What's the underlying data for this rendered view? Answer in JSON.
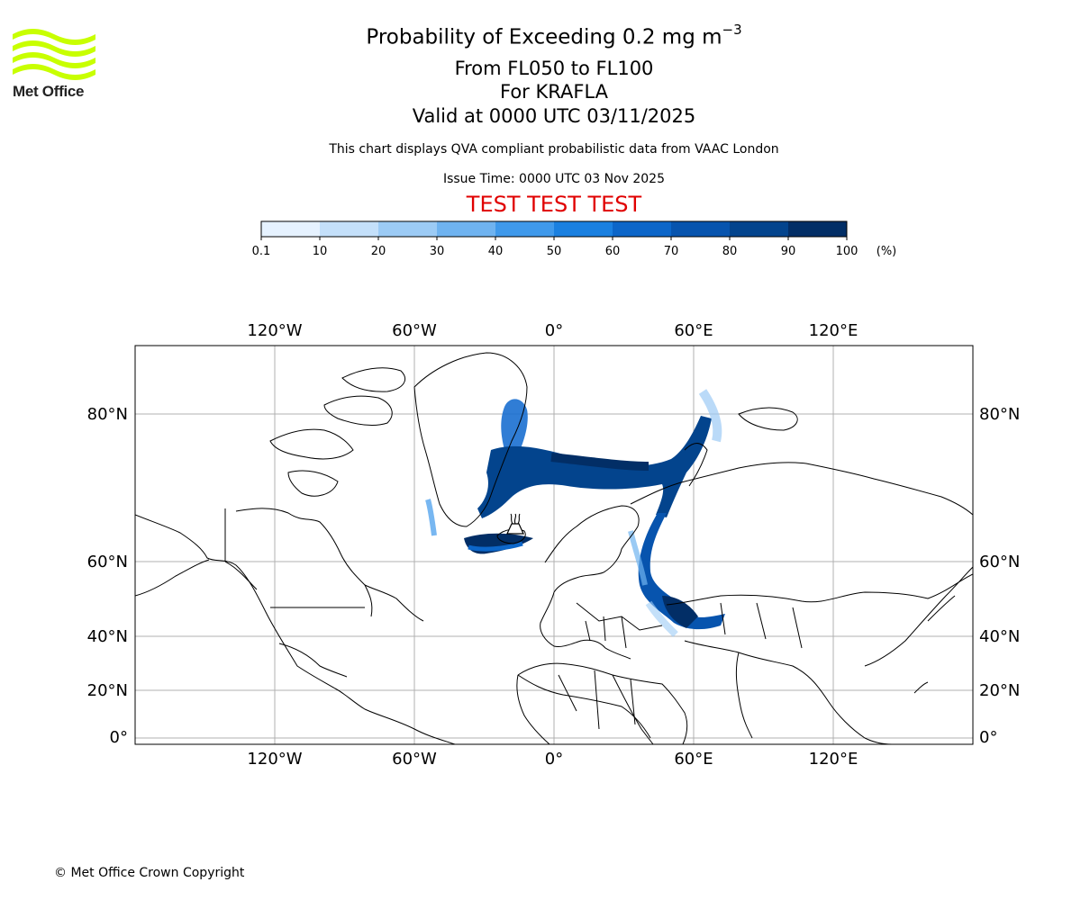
{
  "logo": {
    "brand": "Met Office",
    "accent": "#c8ff00"
  },
  "header": {
    "title_main": "Probability of Exceeding 0.2 mg m",
    "title_exponent": "−3",
    "flight_levels": "From FL050 to FL100",
    "volcano": "For KRAFLA",
    "valid_time": "Valid at 0000 UTC 03/11/2025",
    "qva_note": "This chart displays QVA compliant probabilistic data from VAAC London",
    "issue_time": "Issue Time: 0000 UTC 03 Nov 2025",
    "test_banner": "TEST TEST TEST",
    "test_color": "#e00000"
  },
  "colorbar": {
    "ticks": [
      "0.1",
      "10",
      "20",
      "30",
      "40",
      "50",
      "60",
      "70",
      "80",
      "90",
      "100"
    ],
    "unit": "(%)",
    "colors": [
      "#e6f2ff",
      "#c4e0fa",
      "#9ccbf5",
      "#6fb3f0",
      "#3f99eb",
      "#1a80e0",
      "#0c66c9",
      "#0754ae",
      "#03448d",
      "#022e66"
    ]
  },
  "map": {
    "longitude_labels": [
      "120°W",
      "60°W",
      "0°",
      "60°E",
      "120°E"
    ],
    "latitude_labels": [
      "80°N",
      "60°N",
      "40°N",
      "20°N",
      "0°"
    ],
    "volcano_name": "KRAFLA"
  },
  "footer": {
    "copyright": "© Met Office Crown Copyright"
  }
}
